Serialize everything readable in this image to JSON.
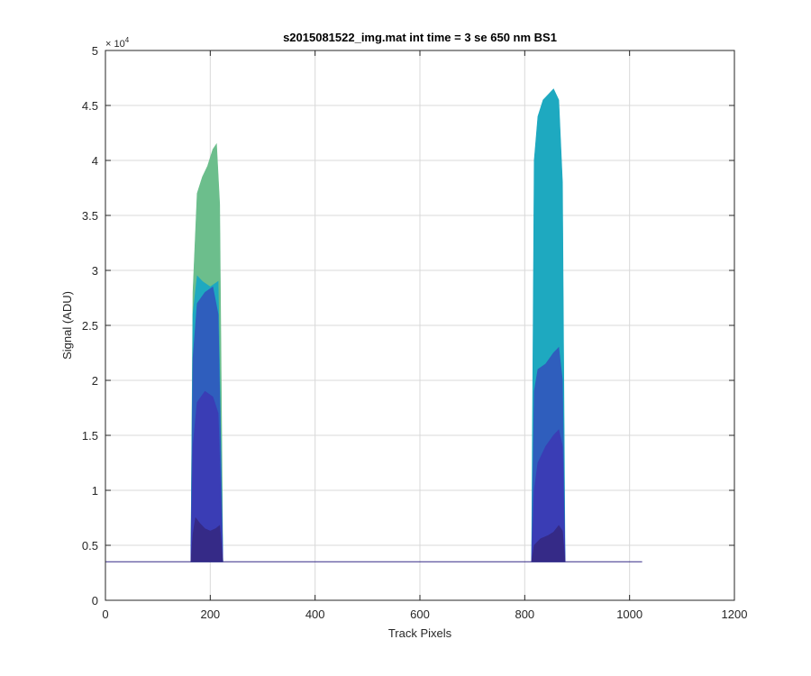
{
  "chart_data": {
    "type": "area",
    "title": "s2015081522_img.mat int time = 3 se  650 nm BS1",
    "xlabel": "Track Pixels",
    "ylabel": "Signal (ADU)",
    "exponent_label": "× 10",
    "exponent_power": "4",
    "xlim": [
      0,
      1200
    ],
    "ylim": [
      0,
      50000
    ],
    "x_ticks": [
      0,
      200,
      400,
      600,
      800,
      1000,
      1200
    ],
    "x_tick_labels": [
      "0",
      "200",
      "400",
      "600",
      "800",
      "1000",
      "1200"
    ],
    "y_ticks": [
      0,
      5000,
      10000,
      15000,
      20000,
      25000,
      30000,
      35000,
      40000,
      45000,
      50000
    ],
    "y_tick_labels": [
      "0",
      "0.5",
      "1",
      "1.5",
      "2",
      "2.5",
      "3",
      "3.5",
      "4",
      "4.5",
      "5"
    ],
    "grid": true,
    "baseline": 3500,
    "baseline_x_range": [
      0,
      1024
    ],
    "series": [
      {
        "color": "#6cbe8c",
        "peaks": [
          {
            "x": [
              163,
              167,
              175,
              185,
              195,
              205,
              212,
              218,
              224
            ],
            "y": [
              3500,
              28000,
              37000,
              38500,
              39500,
              41000,
              41500,
              36000,
              3500
            ]
          }
        ]
      },
      {
        "color": "#1ea9c0",
        "peaks": [
          {
            "x": [
              163,
              167,
              175,
              185,
              200,
              215,
              224
            ],
            "y": [
              3500,
              26000,
              29500,
              29000,
              28500,
              29000,
              3500
            ]
          },
          {
            "x": [
              813,
              818,
              825,
              835,
              845,
              855,
              865,
              872,
              877
            ],
            "y": [
              3500,
              40000,
              44000,
              45500,
              46000,
              46500,
              45500,
              38000,
              3500
            ]
          }
        ]
      },
      {
        "color": "#2f5ebd",
        "peaks": [
          {
            "x": [
              163,
              167,
              175,
              190,
              205,
              215,
              224
            ],
            "y": [
              3500,
              22000,
              27000,
              28000,
              28500,
              26000,
              3500
            ]
          },
          {
            "x": [
              813,
              818,
              825,
              840,
              855,
              865,
              872,
              877
            ],
            "y": [
              3500,
              19000,
              21000,
              21500,
              22500,
              23000,
              20000,
              3500
            ]
          }
        ]
      },
      {
        "color": "#3a3db5",
        "peaks": [
          {
            "x": [
              163,
              167,
              175,
              190,
              205,
              215,
              224
            ],
            "y": [
              3500,
              14000,
              18000,
              19000,
              18500,
              17000,
              3500
            ]
          },
          {
            "x": [
              813,
              818,
              825,
              840,
              855,
              865,
              872,
              877
            ],
            "y": [
              3500,
              10000,
              12500,
              14000,
              15000,
              15500,
              14000,
              3500
            ]
          }
        ]
      },
      {
        "color": "#352a87",
        "peaks": [
          {
            "x": [
              163,
              167,
              172,
              180,
              190,
              200,
              210,
              218,
              224
            ],
            "y": [
              3500,
              6000,
              7500,
              7000,
              6500,
              6300,
              6500,
              6800,
              3500
            ]
          },
          {
            "x": [
              813,
              818,
              830,
              845,
              855,
              865,
              872,
              877
            ],
            "y": [
              3500,
              5000,
              5600,
              5900,
              6200,
              6800,
              6300,
              3500
            ]
          }
        ]
      }
    ]
  }
}
